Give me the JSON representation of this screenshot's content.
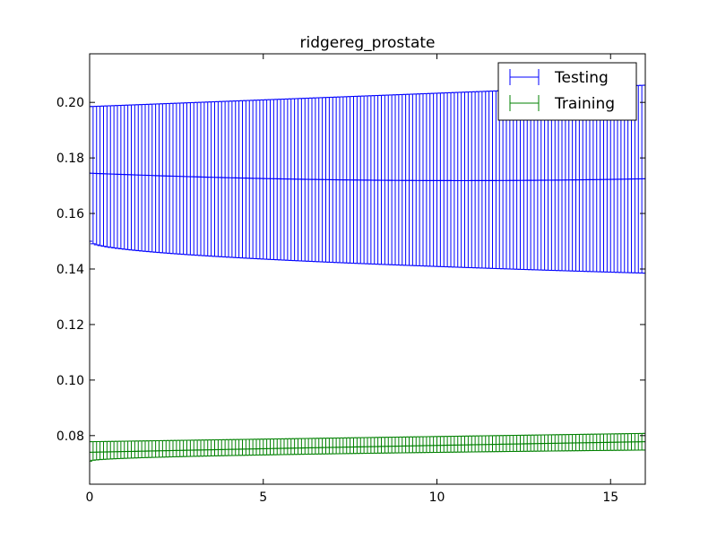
{
  "chart_data": {
    "type": "errorbar",
    "title": "ridgereg_prostate",
    "xlabel": "",
    "ylabel": "",
    "xlim": [
      0,
      16
    ],
    "ylim": [
      0.0625,
      0.2175
    ],
    "xticks": [
      0,
      5,
      10,
      15
    ],
    "xtick_labels": [
      "0",
      "5",
      "10",
      "15"
    ],
    "yticks": [
      0.08,
      0.1,
      0.12,
      0.14,
      0.16,
      0.18,
      0.2
    ],
    "ytick_labels": [
      "0.08",
      "0.10",
      "0.12",
      "0.14",
      "0.16",
      "0.18",
      "0.20"
    ],
    "grid": false,
    "legend_position": "top-right",
    "x_step": 0.1,
    "series": [
      {
        "name": "Testing",
        "color": "#0000ff",
        "mean_start": 0.1745,
        "mean_mid": 0.172,
        "mean_end": 0.1725,
        "lower_start": 0.15,
        "lower_end": 0.1385,
        "upper_start": 0.1985,
        "upper_end": 0.2062
      },
      {
        "name": "Training",
        "color": "#008000",
        "mean_start": 0.074,
        "mean_mid": 0.076,
        "mean_end": 0.0778,
        "lower_start": 0.0708,
        "lower_end": 0.0748,
        "upper_start": 0.0778,
        "upper_end": 0.0808
      }
    ]
  }
}
